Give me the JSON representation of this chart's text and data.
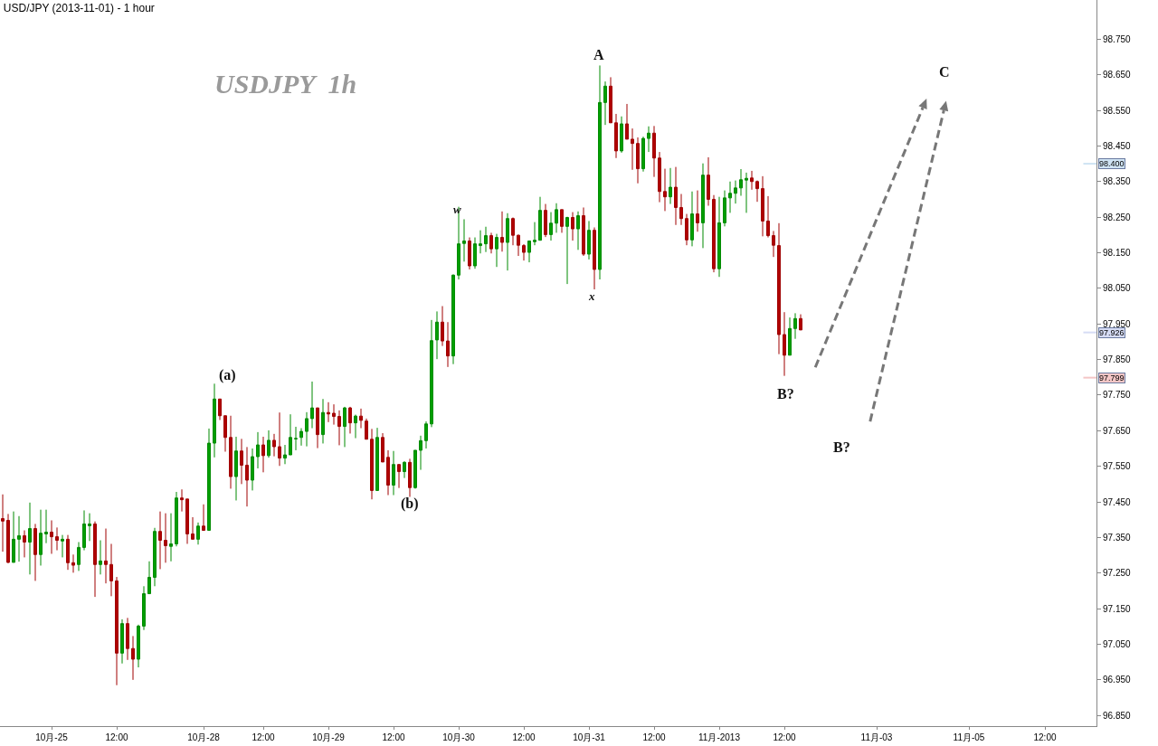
{
  "chart_data": {
    "type": "candlestick",
    "title": "USD/JPY (2013-11-01) - 1 hour",
    "categories": [
      null,
      null,
      null,
      null,
      null,
      null,
      null,
      null,
      null,
      "10月-25",
      null,
      null,
      null,
      null,
      null,
      null,
      null,
      null,
      null,
      null,
      null,
      "12:00",
      null,
      null,
      null,
      null,
      null,
      null,
      null,
      null,
      null,
      null,
      null,
      null,
      null,
      null,
      null,
      "10月-28",
      null,
      null,
      null,
      null,
      null,
      null,
      null,
      null,
      null,
      null,
      "12:00",
      null,
      null,
      null,
      null,
      null,
      null,
      null,
      null,
      null,
      null,
      null,
      "10月-29",
      null,
      null,
      null,
      null,
      null,
      null,
      null,
      null,
      null,
      null,
      null,
      "12:00",
      null,
      null,
      null,
      null,
      null,
      null,
      null,
      null,
      null,
      null,
      null,
      "10月-30",
      null,
      null,
      null,
      null,
      null,
      null,
      null,
      null,
      null,
      null,
      null,
      "12:00",
      null,
      null,
      null,
      null,
      null,
      null,
      null,
      null,
      null,
      null,
      null,
      "10月-31",
      null,
      null,
      null,
      null,
      null,
      null,
      null,
      null,
      null,
      null,
      null,
      "12:00",
      null,
      null,
      null,
      null,
      null,
      null,
      null,
      null,
      null,
      null,
      null,
      "11月-2013",
      null,
      null,
      null,
      null,
      null,
      null,
      null,
      null,
      null,
      null,
      null,
      "12:00",
      null,
      null,
      null,
      null,
      null,
      null,
      null,
      null,
      null,
      null,
      null,
      null,
      null,
      null,
      null,
      null,
      "11月-03",
      null,
      null,
      null,
      null,
      null,
      null,
      null,
      null,
      null,
      null,
      null,
      null,
      null,
      null,
      null,
      null,
      "11月-05",
      null,
      null,
      null,
      null,
      null,
      null,
      null,
      null,
      null,
      null,
      null,
      null,
      null,
      "12:00",
      null,
      null,
      null,
      null,
      null,
      null,
      null,
      null,
      null
    ],
    "ohlc": [
      [
        97.403,
        97.471,
        97.31,
        97.396
      ],
      [
        97.398,
        97.416,
        97.278,
        97.28
      ],
      [
        97.28,
        97.423,
        97.28,
        97.345
      ],
      [
        97.345,
        97.41,
        97.282,
        97.355
      ],
      [
        97.355,
        97.37,
        97.294,
        97.337
      ],
      [
        97.337,
        97.448,
        97.246,
        97.375
      ],
      [
        97.375,
        97.388,
        97.228,
        97.302
      ],
      [
        97.302,
        97.428,
        97.271,
        97.362
      ],
      [
        97.36,
        97.428,
        97.334,
        97.365
      ],
      [
        97.365,
        97.398,
        97.304,
        97.352
      ],
      [
        97.352,
        97.378,
        97.314,
        97.342
      ],
      [
        97.34,
        97.357,
        97.294,
        97.345
      ],
      [
        97.345,
        97.357,
        97.259,
        97.279
      ],
      [
        97.279,
        97.302,
        97.251,
        97.272
      ],
      [
        97.274,
        97.337,
        97.256,
        97.322
      ],
      [
        97.322,
        97.426,
        97.314,
        97.388
      ],
      [
        97.383,
        97.418,
        97.34,
        97.388
      ],
      [
        97.388,
        97.395,
        97.183,
        97.274
      ],
      [
        97.274,
        97.342,
        97.246,
        97.284
      ],
      [
        97.284,
        97.375,
        97.221,
        97.274
      ],
      [
        97.274,
        97.332,
        97.185,
        97.228
      ],
      [
        97.228,
        97.239,
        96.935,
        97.025
      ],
      [
        97.025,
        97.12,
        96.996,
        97.108
      ],
      [
        97.108,
        97.124,
        97.006,
        97.038
      ],
      [
        97.038,
        97.073,
        96.95,
        97.008
      ],
      [
        97.008,
        97.105,
        96.985,
        97.101
      ],
      [
        97.101,
        97.213,
        97.09,
        97.192
      ],
      [
        97.192,
        97.283,
        97.192,
        97.238
      ],
      [
        97.238,
        97.377,
        97.213,
        97.367
      ],
      [
        97.367,
        97.423,
        97.261,
        97.342
      ],
      [
        97.342,
        97.418,
        97.279,
        97.327
      ],
      [
        97.325,
        97.418,
        97.283,
        97.332
      ],
      [
        97.332,
        97.478,
        97.325,
        97.461
      ],
      [
        97.461,
        97.485,
        97.423,
        97.456
      ],
      [
        97.458,
        97.458,
        97.332,
        97.36
      ],
      [
        97.36,
        97.407,
        97.345,
        97.345
      ],
      [
        97.345,
        97.392,
        97.33,
        97.382
      ],
      [
        97.382,
        97.443,
        97.37,
        97.37
      ],
      [
        97.37,
        97.656,
        97.37,
        97.615
      ],
      [
        97.615,
        97.782,
        97.575,
        97.739
      ],
      [
        97.739,
        97.739,
        97.68,
        97.692
      ],
      [
        97.692,
        97.692,
        97.591,
        97.631
      ],
      [
        97.631,
        97.692,
        97.487,
        97.521
      ],
      [
        97.521,
        97.633,
        97.454,
        97.593
      ],
      [
        97.593,
        97.627,
        97.5,
        97.553
      ],
      [
        97.553,
        97.604,
        97.437,
        97.511
      ],
      [
        97.511,
        97.6,
        97.482,
        97.577
      ],
      [
        97.577,
        97.646,
        97.544,
        97.61
      ],
      [
        97.61,
        97.633,
        97.533,
        97.58
      ],
      [
        97.58,
        97.651,
        97.574,
        97.623
      ],
      [
        97.623,
        97.641,
        97.578,
        97.605
      ],
      [
        97.605,
        97.701,
        97.551,
        97.573
      ],
      [
        97.573,
        97.61,
        97.556,
        97.582
      ],
      [
        97.582,
        97.696,
        97.582,
        97.631
      ],
      [
        97.627,
        97.661,
        97.595,
        97.628
      ],
      [
        97.631,
        97.657,
        97.608,
        97.648
      ],
      [
        97.648,
        97.702,
        97.606,
        97.684
      ],
      [
        97.684,
        97.788,
        97.657,
        97.714
      ],
      [
        97.714,
        97.714,
        97.601,
        97.639
      ],
      [
        97.639,
        97.739,
        97.614,
        97.701
      ],
      [
        97.701,
        97.73,
        97.674,
        97.697
      ],
      [
        97.699,
        97.724,
        97.667,
        97.69
      ],
      [
        97.69,
        97.707,
        97.609,
        97.662
      ],
      [
        97.662,
        97.717,
        97.604,
        97.714
      ],
      [
        97.714,
        97.717,
        97.642,
        97.672
      ],
      [
        97.672,
        97.695,
        97.629,
        97.691
      ],
      [
        97.691,
        97.712,
        97.657,
        97.679
      ],
      [
        97.677,
        97.684,
        97.626,
        97.626
      ],
      [
        97.626,
        97.655,
        97.457,
        97.482
      ],
      [
        97.482,
        97.658,
        97.482,
        97.631
      ],
      [
        97.631,
        97.643,
        97.562,
        97.562
      ],
      [
        97.575,
        97.595,
        97.469,
        97.497
      ],
      [
        97.497,
        97.593,
        97.469,
        97.555
      ],
      [
        97.555,
        97.555,
        97.489,
        97.535
      ],
      [
        97.535,
        97.564,
        97.517,
        97.561
      ],
      [
        97.561,
        97.571,
        97.464,
        97.49
      ],
      [
        97.49,
        97.595,
        97.487,
        97.595
      ],
      [
        97.595,
        97.636,
        97.54,
        97.622
      ],
      [
        97.622,
        97.676,
        97.6,
        97.669
      ],
      [
        97.669,
        97.961,
        97.66,
        97.903
      ],
      [
        97.905,
        97.985,
        97.851,
        97.955
      ],
      [
        97.955,
        98.0,
        97.888,
        97.902
      ],
      [
        97.902,
        97.955,
        97.829,
        97.86
      ],
      [
        97.86,
        98.089,
        97.837,
        98.087
      ],
      [
        98.087,
        98.279,
        98.075,
        98.175
      ],
      [
        98.176,
        98.244,
        98.125,
        98.183
      ],
      [
        98.183,
        98.193,
        98.103,
        98.113
      ],
      [
        98.113,
        98.193,
        98.105,
        98.175
      ],
      [
        98.17,
        98.213,
        98.148,
        98.175
      ],
      [
        98.175,
        98.223,
        98.152,
        98.198
      ],
      [
        98.198,
        98.206,
        98.148,
        98.161
      ],
      [
        98.161,
        98.203,
        98.11,
        98.193
      ],
      [
        98.193,
        98.266,
        98.153,
        98.179
      ],
      [
        98.179,
        98.261,
        98.1,
        98.246
      ],
      [
        98.246,
        98.249,
        98.171,
        98.199
      ],
      [
        98.199,
        98.201,
        98.141,
        98.171
      ],
      [
        98.17,
        98.174,
        98.128,
        98.151
      ],
      [
        98.151,
        98.183,
        98.123,
        98.183
      ],
      [
        98.181,
        98.236,
        98.171,
        98.185
      ],
      [
        98.185,
        98.307,
        98.185,
        98.269
      ],
      [
        98.269,
        98.287,
        98.194,
        98.201
      ],
      [
        98.201,
        98.264,
        98.184,
        98.233
      ],
      [
        98.233,
        98.289,
        98.206,
        98.271
      ],
      [
        98.271,
        98.271,
        98.206,
        98.224
      ],
      [
        98.224,
        98.251,
        98.062,
        98.249
      ],
      [
        98.249,
        98.264,
        98.184,
        98.217
      ],
      [
        98.217,
        98.266,
        98.158,
        98.254
      ],
      [
        98.254,
        98.277,
        98.141,
        98.146
      ],
      [
        98.146,
        98.239,
        98.131,
        98.213
      ],
      [
        98.213,
        98.221,
        98.047,
        98.103
      ],
      [
        98.103,
        98.676,
        98.075,
        98.572
      ],
      [
        98.572,
        98.631,
        98.509,
        98.618
      ],
      [
        98.618,
        98.643,
        98.515,
        98.515
      ],
      [
        98.515,
        98.54,
        98.416,
        98.436
      ],
      [
        98.436,
        98.533,
        98.431,
        98.512
      ],
      [
        98.512,
        98.568,
        98.469,
        98.469
      ],
      [
        98.469,
        98.499,
        98.383,
        98.457
      ],
      [
        98.457,
        98.474,
        98.345,
        98.386
      ],
      [
        98.386,
        98.476,
        98.378,
        98.471
      ],
      [
        98.471,
        98.505,
        98.433,
        98.486
      ],
      [
        98.486,
        98.506,
        98.363,
        98.416
      ],
      [
        98.416,
        98.433,
        98.292,
        98.322
      ],
      [
        98.322,
        98.386,
        98.267,
        98.307
      ],
      [
        98.307,
        98.388,
        98.287,
        98.334
      ],
      [
        98.334,
        98.391,
        98.228,
        98.277
      ],
      [
        98.277,
        98.315,
        98.228,
        98.246
      ],
      [
        98.246,
        98.259,
        98.171,
        98.186
      ],
      [
        98.186,
        98.322,
        98.168,
        98.259
      ],
      [
        98.259,
        98.325,
        98.209,
        98.234
      ],
      [
        98.234,
        98.401,
        98.163,
        98.368
      ],
      [
        98.368,
        98.418,
        98.282,
        98.3
      ],
      [
        98.3,
        98.312,
        98.095,
        98.105
      ],
      [
        98.105,
        98.307,
        98.082,
        98.234
      ],
      [
        98.234,
        98.325,
        98.224,
        98.304
      ],
      [
        98.304,
        98.35,
        98.262,
        98.317
      ],
      [
        98.317,
        98.353,
        98.288,
        98.332
      ],
      [
        98.332,
        98.385,
        98.31,
        98.355
      ],
      [
        98.354,
        98.375,
        98.262,
        98.359
      ],
      [
        98.36,
        98.38,
        98.327,
        98.35
      ],
      [
        98.35,
        98.353,
        98.293,
        98.33
      ],
      [
        98.33,
        98.365,
        98.196,
        98.239
      ],
      [
        98.239,
        98.309,
        98.193,
        98.198
      ],
      [
        98.198,
        98.211,
        98.138,
        98.171
      ],
      [
        98.17,
        98.233,
        97.865,
        97.92
      ],
      [
        97.92,
        97.983,
        97.804,
        97.862
      ],
      [
        97.862,
        97.968,
        97.862,
        97.937
      ],
      [
        97.937,
        97.98,
        97.908,
        97.965
      ],
      [
        97.965,
        97.977,
        97.933,
        97.933
      ],
      null,
      null,
      null,
      null,
      null,
      null,
      null,
      null,
      null,
      null,
      null,
      null,
      null,
      null,
      null,
      null,
      null,
      null,
      null,
      null,
      null,
      null,
      null,
      null,
      null,
      null,
      null,
      null,
      null,
      null,
      null,
      null,
      null,
      null,
      null,
      null,
      null,
      null,
      null,
      null,
      null,
      null,
      null,
      null,
      null,
      null,
      null,
      null,
      null,
      null,
      null,
      null,
      null,
      null
    ],
    "ylim": [
      96.82,
      98.86
    ],
    "yticks": [
      {
        "value": 96.85,
        "label": "96.850"
      },
      {
        "value": 96.95,
        "label": "96.950"
      },
      {
        "value": 97.05,
        "label": "97.050"
      },
      {
        "value": 97.15,
        "label": "97.150"
      },
      {
        "value": 97.25,
        "label": "97.250"
      },
      {
        "value": 97.35,
        "label": "97.350"
      },
      {
        "value": 97.45,
        "label": "97.450"
      },
      {
        "value": 97.55,
        "label": "97.550"
      },
      {
        "value": 97.65,
        "label": "97.650"
      },
      {
        "value": 97.75,
        "label": "97.750"
      },
      {
        "value": 97.85,
        "label": "97.850"
      },
      {
        "value": 97.95,
        "label": "97.950"
      },
      {
        "value": 98.05,
        "label": "98.050"
      },
      {
        "value": 98.15,
        "label": "98.150"
      },
      {
        "value": 98.25,
        "label": "98.250"
      },
      {
        "value": 98.35,
        "label": "98.350"
      },
      {
        "value": 98.45,
        "label": "98.450"
      },
      {
        "value": 98.55,
        "label": "98.550"
      },
      {
        "value": 98.65,
        "label": "98.650"
      },
      {
        "value": 98.75,
        "label": "98.750"
      }
    ],
    "ref_lines": [
      {
        "axis": "y",
        "value": 98.4,
        "label": "98.400",
        "color": "#cfe3f3"
      },
      {
        "axis": "y",
        "value": 97.926,
        "label": "97.926",
        "color": "#d6dcf5"
      },
      {
        "axis": "y",
        "value": 97.799,
        "label": "97.799",
        "color": "#f4c6c6"
      }
    ],
    "annotations": [
      "USDJPY  1h",
      "(a)",
      "(b)",
      "w",
      "x",
      "A",
      "B?",
      "B?",
      "C"
    ],
    "grid": false
  }
}
